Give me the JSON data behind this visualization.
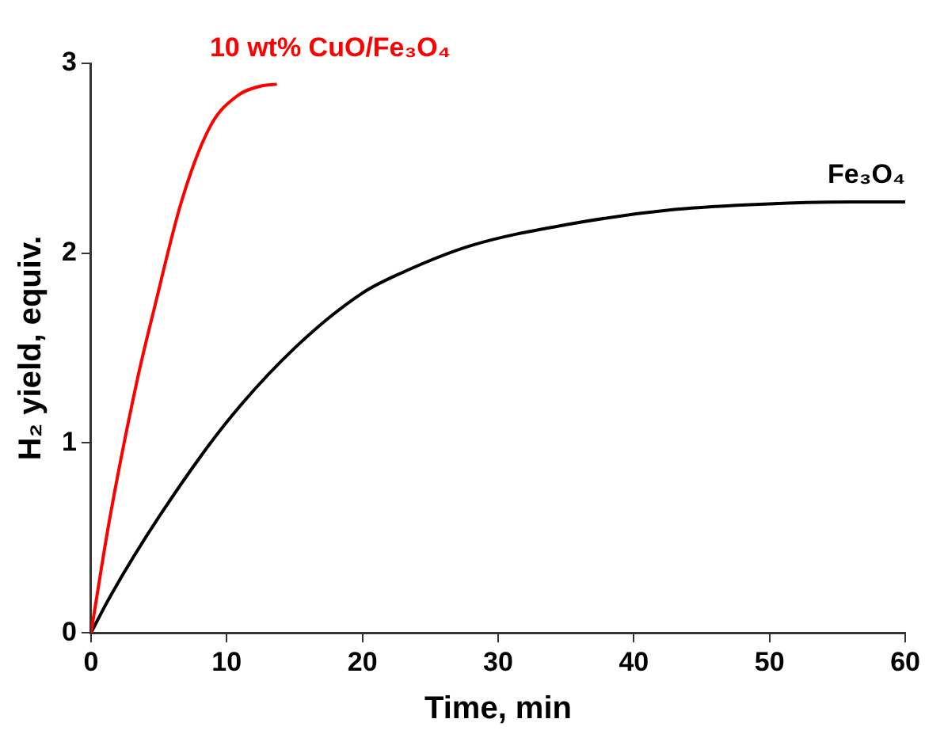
{
  "chart_data": {
    "type": "line",
    "xlabel": "Time, min",
    "ylabel": "H₂ yield, equiv.",
    "xlim": [
      0,
      60
    ],
    "xticks": [
      0,
      10,
      20,
      30,
      40,
      50,
      60
    ],
    "ylim": [
      0,
      3
    ],
    "yticks": [
      0,
      1,
      2,
      3
    ],
    "grid": false,
    "legend": false,
    "marker": "none",
    "line_style": "solid",
    "series": [
      {
        "name": "10 wt% CuO/Fe₃O₄",
        "color": "#ff0000",
        "x": [
          0,
          1.4,
          3.4,
          4.7,
          6.7,
          8.8,
          10.8,
          12.5,
          13.7
        ],
        "values": [
          0,
          0.61,
          1.33,
          1.72,
          2.28,
          2.67,
          2.83,
          2.88,
          2.89
        ]
      },
      {
        "name": "Fe₃O₄",
        "color": "#000000",
        "x": [
          0,
          1.4,
          5,
          10,
          15,
          20,
          23,
          28,
          35,
          43,
          50,
          56,
          60
        ],
        "values": [
          0,
          0.19,
          0.61,
          1.11,
          1.5,
          1.79,
          1.9,
          2.04,
          2.15,
          2.23,
          2.26,
          2.27,
          2.27
        ]
      }
    ]
  }
}
